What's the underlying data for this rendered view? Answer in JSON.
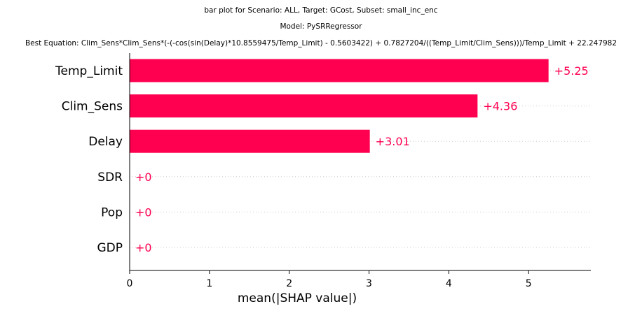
{
  "titles": [
    "bar plot for Scenario: ALL, Target: GCost, Subset: small_inc_enc",
    "Model: PySRRegressor",
    "Best Equation: Clim_Sens*Clim_Sens*(-(-cos(sin(Delay)*10.8559475/Temp_Limit) - 0.5603422) + 0.7827204/((Temp_Limit/Clim_Sens)))/Temp_Limit + 22.247982"
  ],
  "chart_data": {
    "type": "bar",
    "orientation": "horizontal",
    "categories": [
      "Temp_Limit",
      "Clim_Sens",
      "Delay",
      "SDR",
      "Pop",
      "GDP"
    ],
    "values": [
      5.25,
      4.36,
      3.01,
      0,
      0,
      0
    ],
    "value_labels": [
      "+5.25",
      "+4.36",
      "+3.01",
      "+0",
      "+0",
      "+0"
    ],
    "xlabel": "mean(|SHAP value|)",
    "xlim": [
      0,
      5.78
    ],
    "xticks": [
      0,
      1,
      2,
      3,
      4,
      5
    ],
    "xtick_labels": [
      "0",
      "1",
      "2",
      "3",
      "4",
      "5"
    ],
    "grid": "dotted horizontal lines per row",
    "bar_color": "#ff0051"
  }
}
